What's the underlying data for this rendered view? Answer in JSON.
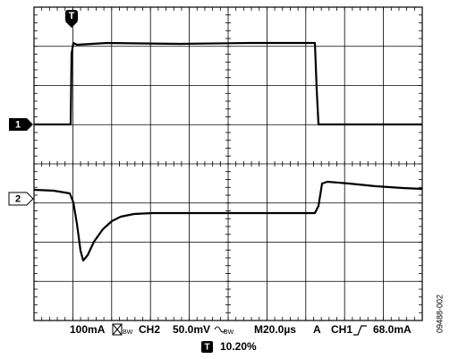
{
  "channel_markers": [
    "1",
    "2"
  ],
  "trigger_marker": "T",
  "status": {
    "ch1_scale": "100mA",
    "bandwidth_limit": "BW",
    "ch2": "CH2",
    "ch2_scale": "50.0mV",
    "timebase": "M20.0µs",
    "trigger_mode": "A",
    "trigger_source": "CH1",
    "trigger_level": "68.0mA"
  },
  "trigger_position": {
    "marker": "T",
    "value": "10.20%"
  },
  "figure_id": "09488-002"
}
